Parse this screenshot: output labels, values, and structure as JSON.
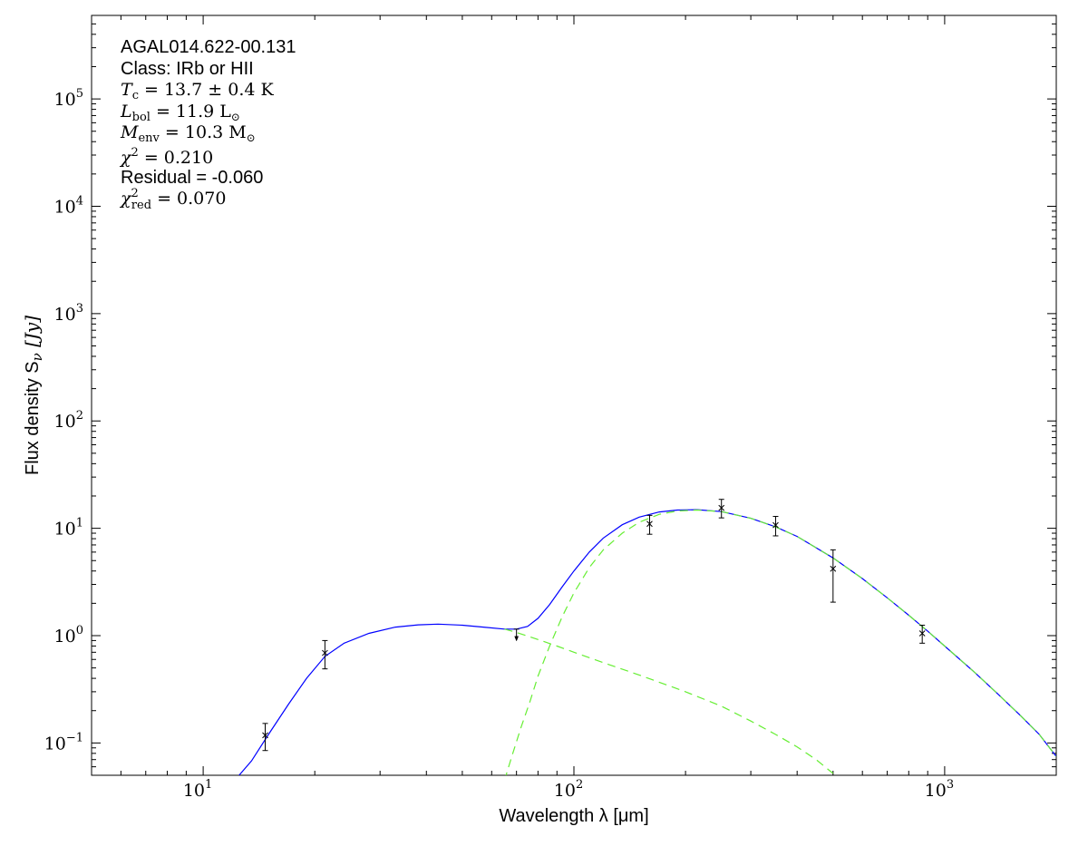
{
  "chart_data": {
    "type": "scatter",
    "title": "",
    "xlabel": "Wavelength λ [μm]",
    "ylabel": "Flux density S",
    "ylabel_sub": "ν",
    "ylabel_unit": " [Jy]",
    "xscale": "log",
    "yscale": "log",
    "xlim": [
      5,
      2000
    ],
    "ylim": [
      0.05,
      600000
    ],
    "grid": false,
    "x_ticks": [
      {
        "value": 10,
        "base": "10",
        "exp": "1"
      },
      {
        "value": 100,
        "base": "10",
        "exp": "2"
      },
      {
        "value": 1000,
        "base": "10",
        "exp": "3"
      }
    ],
    "y_ticks": [
      {
        "value": 0.1,
        "base": "10",
        "exp": "−1"
      },
      {
        "value": 1,
        "base": "10",
        "exp": "0"
      },
      {
        "value": 10,
        "base": "10",
        "exp": "1"
      },
      {
        "value": 100,
        "base": "10",
        "exp": "2"
      },
      {
        "value": 1000,
        "base": "10",
        "exp": "3"
      },
      {
        "value": 10000,
        "base": "10",
        "exp": "4"
      },
      {
        "value": 100000,
        "base": "10",
        "exp": "5"
      }
    ],
    "annotations": {
      "source": "AGAL014.622-00.131",
      "class": "Class: IRb or HII",
      "tc": {
        "sym": "T",
        "sub": "c",
        "text": " = 13.7 ± 0.4 K"
      },
      "lbol": {
        "sym": "L",
        "sub": "bol",
        "text": " = 11.9 L",
        "tail_sub": "⊙"
      },
      "menv": {
        "sym": "M",
        "sub": "env",
        "text": " = 10.3 M",
        "tail_sub": "⊙"
      },
      "chi2": {
        "sym": "χ",
        "sup": "2",
        "text": " = 0.210"
      },
      "residual": "Residual = -0.060",
      "chi2red": {
        "sym": "χ",
        "sup": "2",
        "sub": "red",
        "text": " = 0.070"
      }
    },
    "points": [
      {
        "x": 14.7,
        "y": 0.118,
        "ylo": 0.085,
        "yhi": 0.152
      },
      {
        "x": 21.3,
        "y": 0.69,
        "ylo": 0.49,
        "yhi": 0.9
      },
      {
        "x": 160,
        "y": 11.0,
        "ylo": 8.8,
        "yhi": 13.2
      },
      {
        "x": 250,
        "y": 15.5,
        "ylo": 12.5,
        "yhi": 18.6
      },
      {
        "x": 350,
        "y": 10.7,
        "ylo": 8.5,
        "yhi": 12.9
      },
      {
        "x": 500,
        "y": 4.2,
        "ylo": 2.05,
        "yhi": 6.3
      },
      {
        "x": 870,
        "y": 1.05,
        "ylo": 0.85,
        "yhi": 1.25
      }
    ],
    "upper_limits": [
      {
        "x": 70,
        "y": 1.15
      }
    ],
    "series": [
      {
        "style": "solid",
        "color": "#0000ff",
        "x": [
          12.5,
          13.5,
          15,
          17,
          19,
          21.3,
          24,
          28,
          33,
          38,
          43,
          50,
          57,
          65,
          70,
          75,
          80,
          86,
          93,
          100,
          110,
          120,
          135,
          150,
          170,
          190,
          215,
          250,
          300,
          350,
          400,
          500,
          600,
          700,
          800,
          900,
          1000,
          1200,
          1400,
          1600,
          1800,
          2000
        ],
        "y": [
          0.05,
          0.068,
          0.12,
          0.23,
          0.4,
          0.64,
          0.85,
          1.05,
          1.2,
          1.26,
          1.28,
          1.25,
          1.2,
          1.15,
          1.15,
          1.22,
          1.45,
          1.95,
          2.85,
          4.0,
          6.0,
          8.1,
          10.8,
          12.7,
          14.2,
          14.8,
          14.9,
          14.3,
          12.4,
          10.3,
          8.4,
          5.3,
          3.4,
          2.25,
          1.55,
          1.1,
          0.8,
          0.46,
          0.28,
          0.18,
          0.12,
          0.075
        ]
      },
      {
        "style": "dashed",
        "color": "#66ee33",
        "x": [
          65,
          68,
          72,
          76,
          80,
          86,
          93,
          100,
          110,
          120,
          135,
          150,
          170,
          190,
          215,
          250,
          300,
          350,
          400,
          500,
          600,
          700,
          800,
          900,
          1000,
          1200,
          1400,
          1600,
          1800,
          2000
        ],
        "y": [
          0.045,
          0.075,
          0.14,
          0.24,
          0.42,
          0.8,
          1.5,
          2.5,
          4.3,
          6.3,
          9.0,
          11.4,
          13.5,
          14.5,
          14.8,
          14.3,
          12.4,
          10.3,
          8.4,
          5.3,
          3.4,
          2.25,
          1.55,
          1.1,
          0.8,
          0.46,
          0.28,
          0.18,
          0.12,
          0.075
        ]
      },
      {
        "style": "dashed",
        "color": "#66ee33",
        "x": [
          65,
          70,
          80,
          90,
          100,
          120,
          150,
          200,
          250,
          300,
          350,
          400,
          450,
          500
        ],
        "y": [
          1.15,
          1.07,
          0.92,
          0.8,
          0.7,
          0.56,
          0.43,
          0.3,
          0.22,
          0.16,
          0.12,
          0.092,
          0.07,
          0.052
        ]
      }
    ]
  }
}
